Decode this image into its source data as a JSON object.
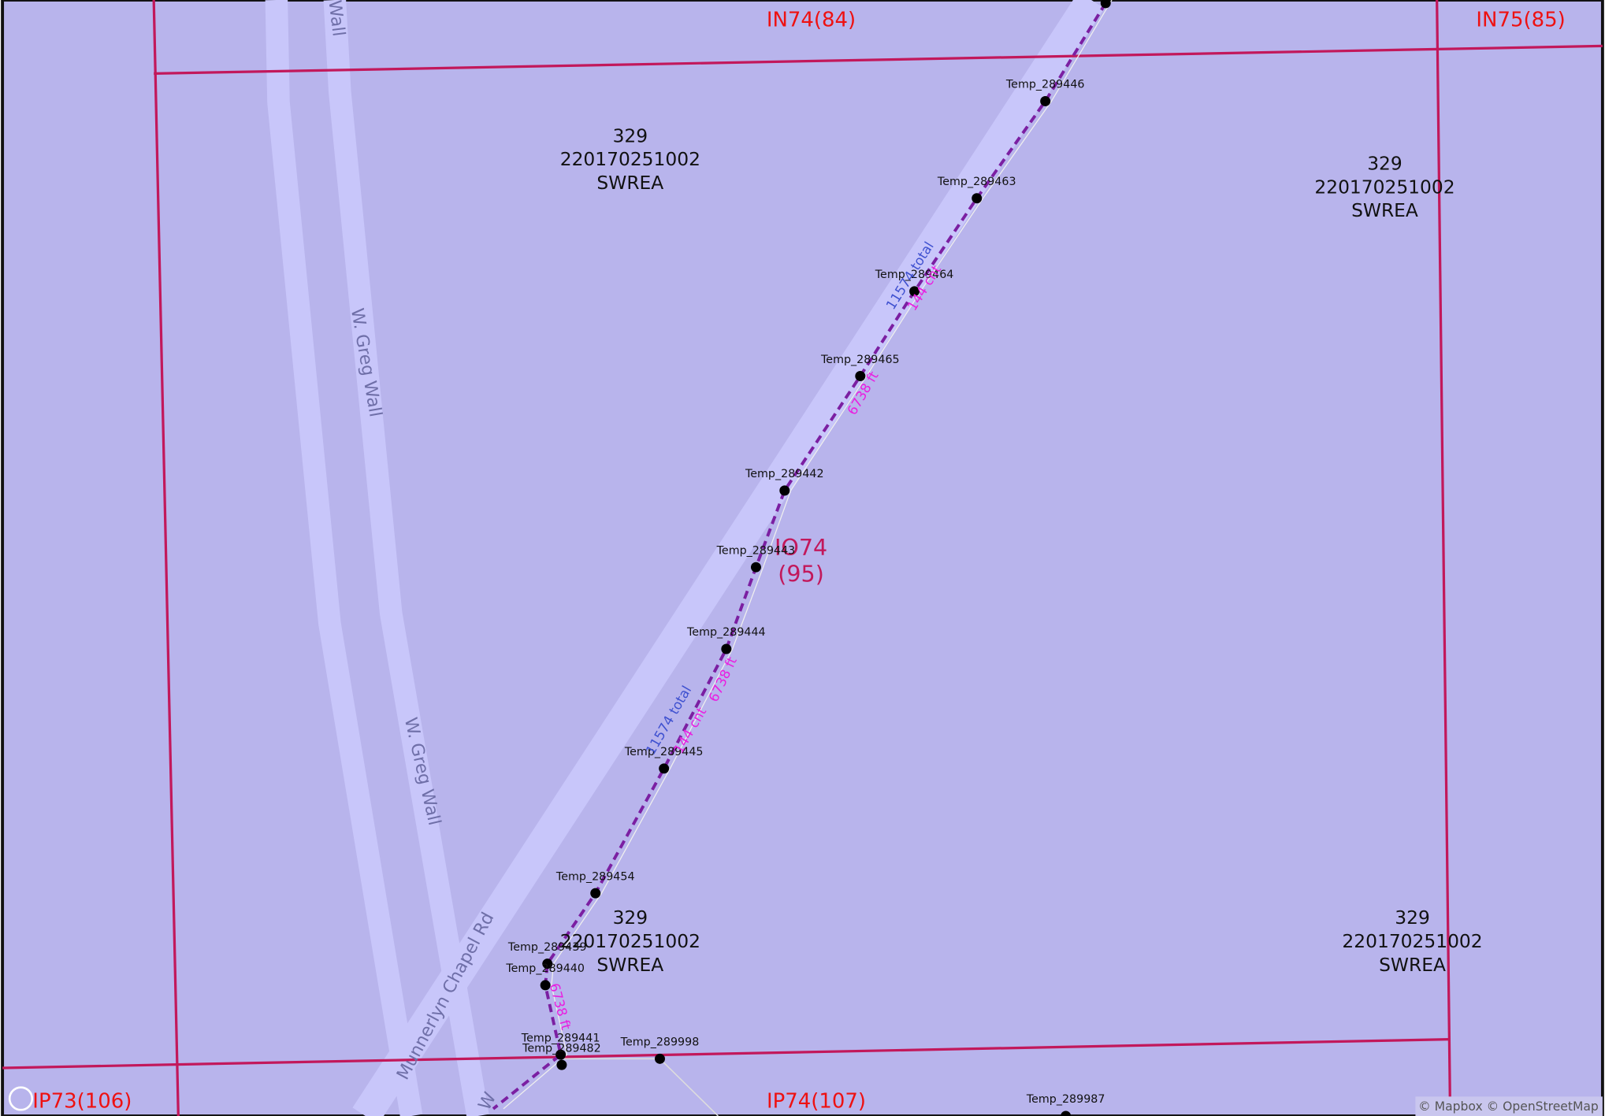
{
  "grid_labels": [
    "IN74(84)",
    "IN75(85)",
    "IO74",
    "(95)",
    "IP73(106)",
    "IP74(107)"
  ],
  "parcels": [
    {
      "lines": [
        "329",
        "220170251002",
        "SWREA"
      ]
    },
    {
      "lines": [
        "329",
        "220170251002",
        "SWREA"
      ]
    },
    {
      "lines": [
        "329",
        "220170251002",
        "SWREA"
      ]
    },
    {
      "lines": [
        "329",
        "220170251002",
        "SWREA"
      ]
    }
  ],
  "roads": [
    "Wall",
    "W. Greg Wall",
    "W. Greg Wall",
    "Munnerlyn Chapel Rd",
    "W"
  ],
  "nodes": [
    "Temp_289446",
    "Temp_289463",
    "Temp_289464",
    "Temp_289465",
    "Temp_289442",
    "Temp_289443",
    "Temp_289444",
    "Temp_289445",
    "Temp_289454",
    "Temp_289439",
    "Temp_289440",
    "Temp_289441",
    "Temp_289482",
    "Temp_289998",
    "Temp_289987"
  ],
  "line_labels": [
    "11574 total",
    "144 cnt",
    "6738 ft",
    "6738 ft",
    "11574 total",
    "144 cnt",
    "6738 ft"
  ],
  "attribution": "© Mapbox © OpenStreetMap"
}
